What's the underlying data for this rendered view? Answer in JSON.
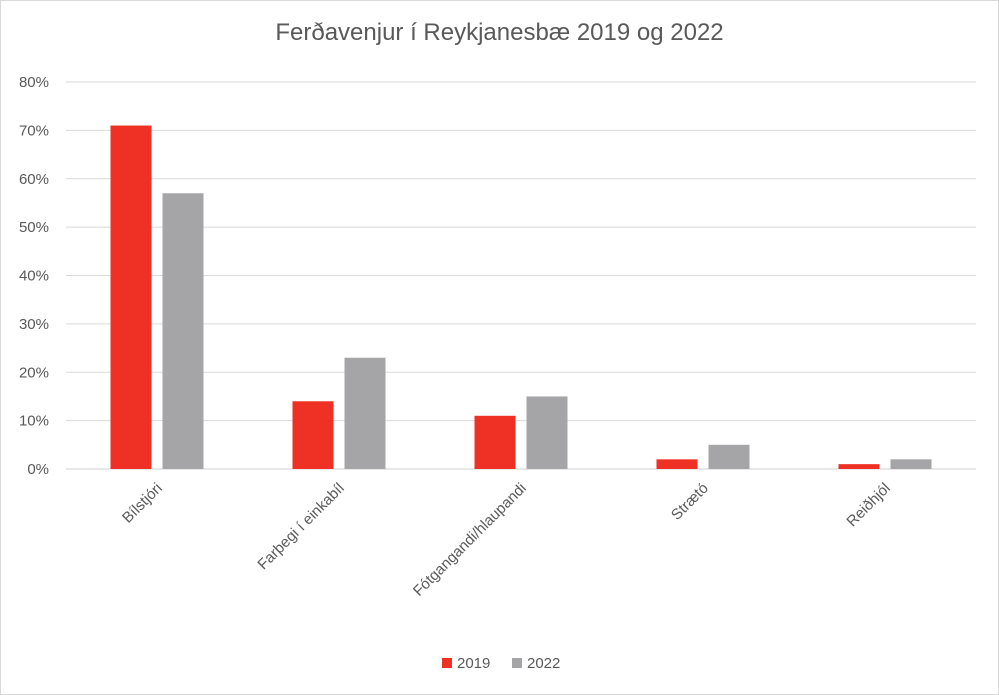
{
  "chart_data": {
    "type": "bar",
    "title": "Ferðavenjur í Reykjanesbæ 2019 og 2022",
    "categories": [
      "Bílstjóri",
      "Farþegi í einkabíl",
      "Fótgangandi/hlaupandi",
      "Strætó",
      "Reiðhjól"
    ],
    "series": [
      {
        "name": "2019",
        "color": "#ee3124",
        "values": [
          71,
          14,
          11,
          2,
          1
        ]
      },
      {
        "name": "2022",
        "color": "#a5a5a7",
        "values": [
          57,
          23,
          15,
          5,
          2
        ]
      }
    ],
    "y_ticks": [
      "0%",
      "10%",
      "20%",
      "30%",
      "40%",
      "50%",
      "60%",
      "70%",
      "80%"
    ],
    "ylim": [
      0,
      80
    ],
    "unit": "%",
    "grid": true,
    "legend_position": "bottom"
  }
}
